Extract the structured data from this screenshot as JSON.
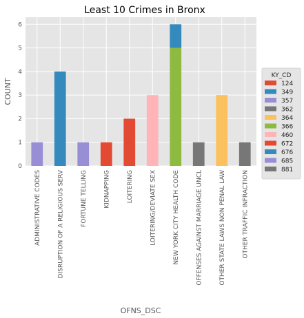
{
  "chart_data": {
    "type": "bar",
    "stacked": true,
    "title": "Least 10 Crimes in Bronx",
    "xlabel": "OFNS_DSC",
    "ylabel": "COUNT",
    "ylim": [
      0,
      6.3
    ],
    "yticks": [
      "0",
      "1",
      "2",
      "3",
      "4",
      "5",
      "6"
    ],
    "grid": true,
    "style": "ggplot",
    "legend_placement": "right",
    "categories": [
      "ADMINISTRATIVE CODES",
      "DISRUPTION OF A RELIGIOUS SERV",
      "FORTUNE TELLING",
      "KIDNAPPING",
      "LOITERING",
      "LOITERING/DEVIATE SEX",
      "NEW YORK CITY HEALTH CODE",
      "OFFENSES AGAINST MARRIAGE UNCL",
      "OTHER STATE LAWS NON PENAL LAW",
      "OTHER TRAFFIC INFRACTION"
    ],
    "legend_title": "KY_CD",
    "series": [
      {
        "name": "124",
        "color": "#E24A33",
        "values": [
          0,
          0,
          0,
          0,
          0,
          0,
          0,
          0,
          0,
          0
        ]
      },
      {
        "name": "349",
        "color": "#348ABD",
        "values": [
          0,
          0,
          0,
          0,
          0,
          0,
          0,
          0,
          0,
          0
        ]
      },
      {
        "name": "357",
        "color": "#988ED5",
        "values": [
          0,
          0,
          1,
          0,
          0,
          0,
          0,
          0,
          0,
          0
        ]
      },
      {
        "name": "362",
        "color": "#777777",
        "values": [
          0,
          0,
          0,
          0,
          0,
          0,
          0,
          0,
          0,
          0
        ]
      },
      {
        "name": "364",
        "color": "#FBC15E",
        "values": [
          0,
          0,
          0,
          0,
          0,
          0,
          0,
          0,
          3,
          0
        ]
      },
      {
        "name": "366",
        "color": "#8EBA42",
        "values": [
          0,
          0,
          0,
          0,
          0,
          0,
          5,
          0,
          0,
          0
        ]
      },
      {
        "name": "460",
        "color": "#FFB5B8",
        "values": [
          0,
          0,
          0,
          0,
          0,
          3,
          0,
          0,
          0,
          0
        ]
      },
      {
        "name": "672",
        "color": "#E24A33",
        "values": [
          0,
          0,
          0,
          1,
          2,
          0,
          0,
          0,
          0,
          0
        ]
      },
      {
        "name": "676",
        "color": "#348ABD",
        "values": [
          0,
          4,
          0,
          0,
          0,
          0,
          1,
          0,
          0,
          0
        ]
      },
      {
        "name": "685",
        "color": "#988ED5",
        "values": [
          1,
          0,
          0,
          0,
          0,
          0,
          0,
          0,
          0,
          0
        ]
      },
      {
        "name": "881",
        "color": "#777777",
        "values": [
          0,
          0,
          0,
          0,
          0,
          0,
          0,
          1,
          0,
          1
        ]
      }
    ]
  }
}
